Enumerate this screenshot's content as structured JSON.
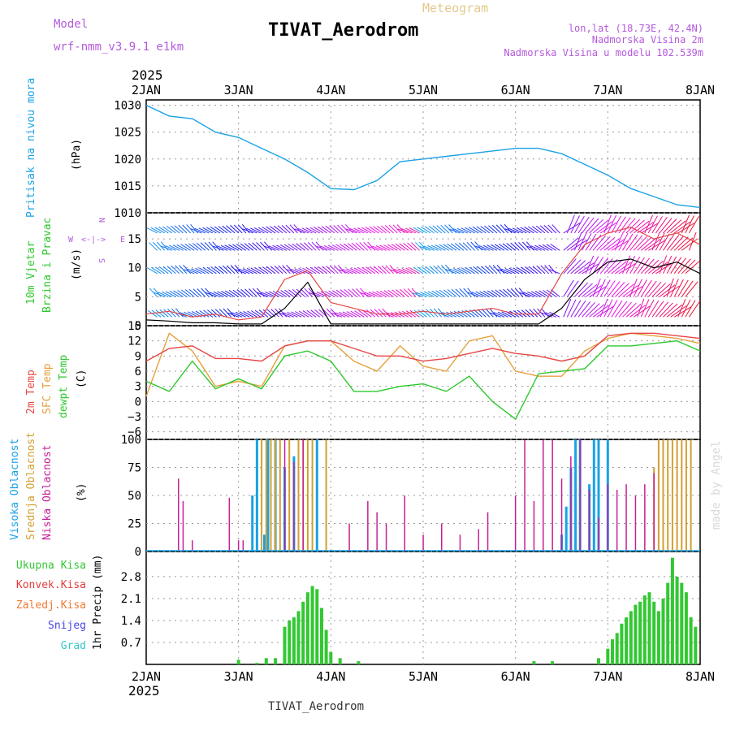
{
  "header": {
    "model_label": "Model",
    "model_name": "wrf-nmm_v3.9.1 e1km",
    "subtitle": "Meteogram",
    "title": "TIVAT_Aerodrom",
    "location": "lon,lat (18.73E, 42.4N)",
    "elevation": "Nadmorska Visina 2m",
    "model_elevation": "Nadmorska Visina u modelu 102.539m",
    "year_top": "2025",
    "year_bottom": "2025",
    "footer": "TIVAT_Aerodrom",
    "credit": "made by Angel"
  },
  "colors": {
    "pressure": "#1aa2e6",
    "temp2m": "#e64646",
    "sfc": "#e6a03c",
    "dewpt": "#2dc82d",
    "wind_speed": "#000000",
    "gust": "#e64646",
    "cloud_high": "#1aa2e6",
    "cloud_mid": "#d2a032",
    "cloud_low": "#c81e96",
    "precip_total": "#32c832",
    "precip_conv": "#e63c3c",
    "precip_frozen": "#f07832",
    "snow": "#4646e6",
    "graupel": "#32c8c8",
    "label_purple": "#b45adc"
  },
  "chart_data": [
    {
      "type": "line",
      "panel": "pressure",
      "ylabel_name": "Pritisak na nivou mora",
      "ylabel_unit": "(hPa)",
      "x_ticks": [
        "2JAN",
        "3JAN",
        "4JAN",
        "5JAN",
        "6JAN",
        "7JAN",
        "8JAN"
      ],
      "ylim": [
        1010,
        1031
      ],
      "y_ticks": [
        1010,
        1015,
        1020,
        1025,
        1030
      ],
      "series": [
        {
          "x_days": [
            0,
            0.25,
            0.5,
            0.75,
            1.0,
            1.25,
            1.5,
            1.75,
            2.0,
            2.25,
            2.5,
            2.75,
            3.0,
            3.25,
            3.5,
            3.75,
            4.0,
            4.25,
            4.5,
            4.75,
            5.0,
            5.25,
            5.5,
            5.75,
            6.0
          ],
          "values": [
            1030,
            1028,
            1027.5,
            1025,
            1024,
            1022,
            1020,
            1017.5,
            1014.5,
            1014.3,
            1016,
            1019.5,
            1020,
            1020.5,
            1021,
            1021.5,
            1022,
            1022,
            1021,
            1019,
            1017,
            1014.5,
            1013,
            1011.5,
            1011
          ]
        }
      ]
    },
    {
      "type": "line",
      "panel": "wind",
      "ylabel_name": "10m Vjetar",
      "ylabel_name2": "Brzina i Pravac",
      "ylabel_unit": "(m/s)",
      "compass": [
        "N",
        "S",
        "W",
        "E"
      ],
      "ylim": [
        0,
        19.5
      ],
      "y_ticks": [
        0,
        5,
        10,
        15
      ],
      "series": [
        {
          "name_hint": "speed",
          "x_days": [
            0,
            0.25,
            0.5,
            0.75,
            1.0,
            1.25,
            1.5,
            1.75,
            2.0,
            2.25,
            2.5,
            2.75,
            3.0,
            3.25,
            3.5,
            3.75,
            4.0,
            4.25,
            4.5,
            4.75,
            5.0,
            5.25,
            5.5,
            5.75,
            6.0
          ],
          "values": [
            1,
            0.8,
            0.5,
            0.5,
            0.3,
            0.3,
            3,
            7.5,
            0.3,
            0.3,
            0.3,
            0.3,
            0.3,
            0.3,
            0.3,
            0.3,
            0.3,
            0.3,
            3,
            8,
            11,
            11.5,
            10,
            11,
            9
          ]
        },
        {
          "name_hint": "gust",
          "x_days": [
            0,
            0.25,
            0.5,
            0.75,
            1.0,
            1.25,
            1.5,
            1.75,
            2.0,
            2.25,
            2.5,
            2.75,
            3.0,
            3.25,
            3.5,
            3.75,
            4.0,
            4.25,
            4.5,
            4.75,
            5.0,
            5.25,
            5.5,
            5.75,
            6.0
          ],
          "values": [
            2,
            2.5,
            1.5,
            2,
            1,
            1.5,
            8,
            9.5,
            4,
            3,
            2,
            2,
            2.5,
            2,
            2.5,
            3,
            2,
            2,
            9,
            14,
            16,
            17,
            15,
            16,
            14
          ]
        }
      ]
    },
    {
      "type": "line",
      "panel": "temperature",
      "ylabel_names": [
        "2m Temp",
        "SFC Temp",
        "dewpt Temp"
      ],
      "ylabel_unit": "(C)",
      "ylim": [
        -7.5,
        15
      ],
      "y_ticks": [
        -6,
        -3,
        0,
        3,
        6,
        9,
        12,
        15
      ],
      "series": [
        {
          "name_hint": "2m",
          "x_days": [
            0,
            0.25,
            0.5,
            0.75,
            1.0,
            1.25,
            1.5,
            1.75,
            2.0,
            2.25,
            2.5,
            2.75,
            3.0,
            3.25,
            3.5,
            3.75,
            4.0,
            4.25,
            4.5,
            4.75,
            5.0,
            5.25,
            5.5,
            5.75,
            6.0
          ],
          "values": [
            8,
            10.5,
            11,
            8.5,
            8.5,
            8,
            11,
            12,
            12,
            10.5,
            9,
            9,
            8,
            8.5,
            9.5,
            10.5,
            9.5,
            9,
            8,
            9,
            13,
            13.5,
            13.5,
            13,
            12.5
          ]
        },
        {
          "name_hint": "sfc",
          "x_days": [
            0,
            0.25,
            0.5,
            0.75,
            1.0,
            1.25,
            1.5,
            1.75,
            2.0,
            2.25,
            2.5,
            2.75,
            3.0,
            3.25,
            3.5,
            3.75,
            4.0,
            4.25,
            4.5,
            4.75,
            5.0,
            5.25,
            5.5,
            5.75,
            6.0
          ],
          "values": [
            1,
            13.5,
            10,
            3,
            4,
            3,
            11,
            12,
            12,
            8,
            6,
            11,
            7,
            6,
            12,
            13,
            6,
            5,
            5,
            10,
            12.5,
            13.5,
            13,
            12.5,
            11.5
          ]
        },
        {
          "name_hint": "dewpt",
          "x_days": [
            0,
            0.25,
            0.5,
            0.75,
            1.0,
            1.25,
            1.5,
            1.75,
            2.0,
            2.25,
            2.5,
            2.75,
            3.0,
            3.25,
            3.5,
            3.75,
            4.0,
            4.25,
            4.5,
            4.75,
            5.0,
            5.25,
            5.5,
            5.75,
            6.0
          ],
          "values": [
            4,
            2,
            8,
            2.5,
            4.5,
            2.5,
            9,
            10,
            8,
            2,
            2,
            3,
            3.5,
            2,
            5,
            0,
            -3.5,
            5.5,
            6,
            6.5,
            11,
            11,
            11.5,
            12,
            10
          ]
        }
      ]
    },
    {
      "type": "bar",
      "panel": "cloud",
      "ylabel_names": [
        "Visoka Oblacnost",
        "Srednja Oblacnost",
        "Niska Oblacnost"
      ],
      "ylabel_unit": "(%)",
      "ylim": [
        0,
        100
      ],
      "y_ticks": [
        0,
        25,
        50,
        75,
        100
      ],
      "series": [
        {
          "name_hint": "high",
          "bars": [
            [
              1.15,
              50
            ],
            [
              1.2,
              100
            ],
            [
              1.28,
              15
            ],
            [
              1.32,
              100
            ],
            [
              1.4,
              100
            ],
            [
              1.5,
              75
            ],
            [
              1.6,
              85
            ],
            [
              1.85,
              100
            ],
            [
              4.5,
              15
            ],
            [
              4.55,
              40
            ],
            [
              4.6,
              75
            ],
            [
              4.65,
              100
            ],
            [
              4.7,
              100
            ],
            [
              4.8,
              60
            ],
            [
              4.85,
              100
            ],
            [
              4.9,
              100
            ],
            [
              5.0,
              100
            ]
          ]
        },
        {
          "name_hint": "mid",
          "bars": [
            [
              1.25,
              100
            ],
            [
              1.3,
              100
            ],
            [
              1.35,
              100
            ],
            [
              1.4,
              100
            ],
            [
              1.45,
              100
            ],
            [
              1.55,
              100
            ],
            [
              1.65,
              100
            ],
            [
              1.7,
              100
            ],
            [
              1.75,
              100
            ],
            [
              1.8,
              100
            ],
            [
              1.95,
              100
            ],
            [
              5.5,
              75
            ],
            [
              5.55,
              100
            ],
            [
              5.6,
              100
            ],
            [
              5.65,
              100
            ],
            [
              5.7,
              100
            ],
            [
              5.75,
              100
            ],
            [
              5.8,
              100
            ],
            [
              5.85,
              100
            ],
            [
              5.9,
              100
            ]
          ]
        },
        {
          "name_hint": "low",
          "bars": [
            [
              0.35,
              65
            ],
            [
              0.4,
              45
            ],
            [
              0.5,
              10
            ],
            [
              0.9,
              48
            ],
            [
              1.0,
              10
            ],
            [
              1.05,
              10
            ],
            [
              1.5,
              100
            ],
            [
              1.6,
              80
            ],
            [
              1.7,
              100
            ],
            [
              2.2,
              25
            ],
            [
              2.4,
              45
            ],
            [
              2.5,
              35
            ],
            [
              2.6,
              25
            ],
            [
              2.8,
              50
            ],
            [
              3.0,
              15
            ],
            [
              3.2,
              25
            ],
            [
              3.4,
              15
            ],
            [
              3.6,
              20
            ],
            [
              3.7,
              35
            ],
            [
              4.0,
              50
            ],
            [
              4.1,
              100
            ],
            [
              4.2,
              45
            ],
            [
              4.3,
              100
            ],
            [
              4.4,
              100
            ],
            [
              4.5,
              65
            ],
            [
              4.6,
              85
            ],
            [
              4.7,
              100
            ],
            [
              4.8,
              55
            ],
            [
              4.9,
              30
            ],
            [
              5.0,
              60
            ],
            [
              5.1,
              55
            ],
            [
              5.2,
              60
            ],
            [
              5.3,
              50
            ],
            [
              5.4,
              60
            ],
            [
              5.5,
              70
            ]
          ]
        }
      ]
    },
    {
      "type": "bar",
      "panel": "precip",
      "ylabel_names": [
        "Ukupna Kisa",
        "Konvek.Kisa",
        "Zaledj.Kisa",
        "Snijeg",
        "Grad"
      ],
      "ylabel_unit": "1hr Precip (mm)",
      "ylim": [
        0,
        3.6
      ],
      "y_ticks": [
        0.7,
        1.4,
        2.1,
        2.8
      ],
      "series": [
        {
          "name_hint": "total",
          "bars": [
            [
              1.0,
              0.15
            ],
            [
              1.2,
              0.05
            ],
            [
              1.3,
              0.2
            ],
            [
              1.4,
              0.2
            ],
            [
              1.5,
              1.2
            ],
            [
              1.55,
              1.4
            ],
            [
              1.6,
              1.5
            ],
            [
              1.65,
              1.7
            ],
            [
              1.7,
              2.0
            ],
            [
              1.75,
              2.3
            ],
            [
              1.8,
              2.5
            ],
            [
              1.85,
              2.4
            ],
            [
              1.9,
              1.8
            ],
            [
              1.95,
              1.1
            ],
            [
              2.0,
              0.4
            ],
            [
              2.1,
              0.2
            ],
            [
              2.3,
              0.1
            ],
            [
              4.2,
              0.1
            ],
            [
              4.4,
              0.1
            ],
            [
              4.9,
              0.2
            ],
            [
              5.0,
              0.5
            ],
            [
              5.05,
              0.8
            ],
            [
              5.1,
              1.0
            ],
            [
              5.15,
              1.3
            ],
            [
              5.2,
              1.5
            ],
            [
              5.25,
              1.7
            ],
            [
              5.3,
              1.9
            ],
            [
              5.35,
              2.0
            ],
            [
              5.4,
              2.2
            ],
            [
              5.45,
              2.3
            ],
            [
              5.5,
              2.0
            ],
            [
              5.55,
              1.7
            ],
            [
              5.6,
              2.1
            ],
            [
              5.65,
              2.6
            ],
            [
              5.7,
              3.4
            ],
            [
              5.75,
              2.8
            ],
            [
              5.8,
              2.6
            ],
            [
              5.85,
              2.3
            ],
            [
              5.9,
              1.5
            ],
            [
              5.95,
              1.2
            ]
          ]
        }
      ]
    }
  ]
}
